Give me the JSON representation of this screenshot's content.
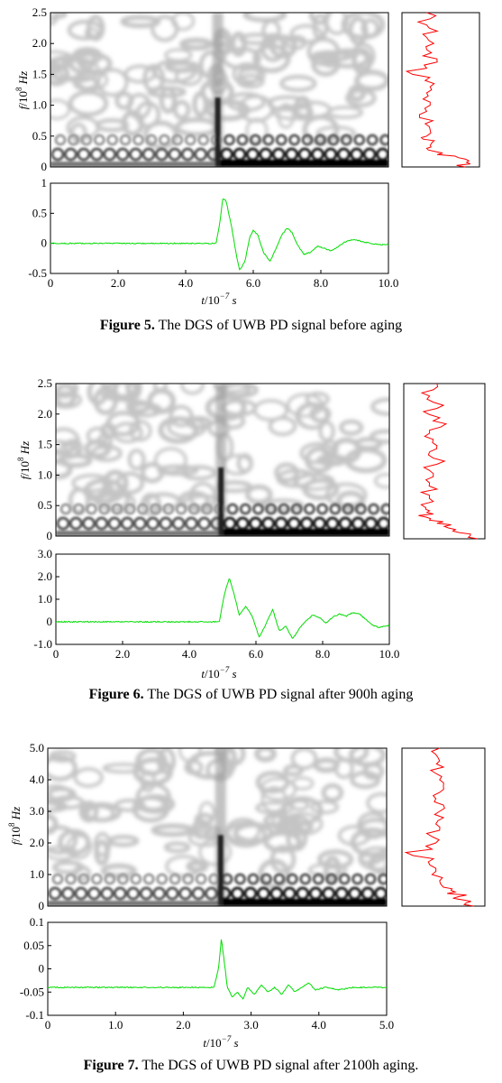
{
  "figures": [
    {
      "caption": {
        "label": "Figure 5.",
        "text": "The DGS of UWB PD signal before aging"
      },
      "chart_data": [
        {
          "type": "heatmap",
          "ylabel_parts": [
            "f",
            "/10",
            "8",
            " Hz"
          ],
          "ylim": [
            0,
            2.5
          ],
          "yticks": [
            "0",
            "0.5",
            "1.0",
            "1.5",
            "2.0",
            "2.5"
          ],
          "xlim": [
            0,
            10
          ],
          "burst_t": 4.95,
          "colormap": [
            "#ffffff",
            "#000000"
          ]
        },
        {
          "type": "line",
          "orientation": "vertical",
          "series_color": "#ff0000",
          "y": [
            0.0,
            0.05,
            0.1,
            0.15,
            0.2,
            0.25,
            0.3,
            0.35,
            0.4,
            0.45,
            0.5,
            0.6,
            0.7,
            0.8,
            0.9,
            1.0,
            1.1,
            1.2,
            1.3,
            1.4,
            1.5,
            1.6,
            1.7,
            1.8,
            1.9,
            2.0,
            2.1,
            2.2,
            2.3,
            2.4,
            2.5
          ],
          "x": [
            0.85,
            0.92,
            0.9,
            0.75,
            0.45,
            0.42,
            0.3,
            0.35,
            0.38,
            0.25,
            0.3,
            0.35,
            0.28,
            0.2,
            0.3,
            0.35,
            0.25,
            0.3,
            0.35,
            0.28,
            0.1,
            0.3,
            0.45,
            0.25,
            0.3,
            0.4,
            0.3,
            0.45,
            0.3,
            0.35,
            0.3
          ]
        },
        {
          "type": "line",
          "series_color": "#00dd00",
          "xlabel_parts": [
            "t",
            "/10",
            "−7",
            " s"
          ],
          "xlim": [
            0,
            10
          ],
          "ylim": [
            -0.5,
            1
          ],
          "xticks": [
            "0",
            "2.0",
            "4.0",
            "6.0",
            "8.0",
            "10.0"
          ],
          "yticks": [
            "-0.5",
            "0",
            "0.5",
            "1"
          ],
          "x": [
            0,
            1,
            2,
            3,
            4,
            4.9,
            5.0,
            5.1,
            5.2,
            5.35,
            5.5,
            5.6,
            5.75,
            5.9,
            6.0,
            6.15,
            6.3,
            6.5,
            6.7,
            6.85,
            7.0,
            7.15,
            7.3,
            7.5,
            7.7,
            7.9,
            8.1,
            8.3,
            8.5,
            8.7,
            8.9,
            9.1,
            9.3,
            9.5,
            9.7,
            10
          ],
          "y": [
            0,
            0,
            0,
            0,
            0,
            0.0,
            0.3,
            0.75,
            0.7,
            0.3,
            -0.2,
            -0.45,
            -0.3,
            0.1,
            0.22,
            0.12,
            -0.15,
            -0.3,
            -0.05,
            0.15,
            0.25,
            0.18,
            -0.02,
            -0.18,
            -0.15,
            -0.05,
            -0.08,
            -0.12,
            -0.06,
            0.02,
            0.06,
            0.05,
            0.02,
            0.0,
            -0.02,
            -0.02
          ]
        }
      ]
    },
    {
      "caption": {
        "label": "Figure 6.",
        "text": "The DGS of UWB PD signal after 900h aging"
      },
      "chart_data": [
        {
          "type": "heatmap",
          "ylabel_parts": [
            "f",
            "/10",
            "8",
            " Hz"
          ],
          "ylim": [
            0,
            2.5
          ],
          "yticks": [
            "0",
            "0.5",
            "1.0",
            "1.5",
            "2.0",
            "2.5"
          ],
          "xlim": [
            0,
            10
          ],
          "burst_t": 4.95,
          "colormap": [
            "#ffffff",
            "#000000"
          ]
        },
        {
          "type": "line",
          "orientation": "vertical",
          "series_color": "#ff0000",
          "y": [
            0.0,
            0.05,
            0.1,
            0.15,
            0.2,
            0.25,
            0.3,
            0.35,
            0.4,
            0.45,
            0.5,
            0.6,
            0.7,
            0.8,
            0.9,
            1.0,
            1.1,
            1.2,
            1.3,
            1.4,
            1.5,
            1.6,
            1.7,
            1.8,
            1.9,
            2.0,
            2.1,
            2.2,
            2.3,
            2.4,
            2.5
          ],
          "x": [
            0.95,
            0.85,
            0.7,
            0.65,
            0.5,
            0.4,
            0.3,
            0.25,
            0.35,
            0.3,
            0.25,
            0.35,
            0.3,
            0.4,
            0.3,
            0.35,
            0.3,
            0.4,
            0.35,
            0.3,
            0.4,
            0.35,
            0.3,
            0.45,
            0.35,
            0.3,
            0.4,
            0.35,
            0.3,
            0.35,
            0.4
          ]
        },
        {
          "type": "line",
          "series_color": "#00dd00",
          "xlabel_parts": [
            "t",
            "/10",
            "−7",
            " s"
          ],
          "xlim": [
            0,
            10
          ],
          "ylim": [
            -1,
            3
          ],
          "xticks": [
            "0",
            "2.0",
            "4.0",
            "6.0",
            "8.0",
            "10.0"
          ],
          "yticks": [
            "-1.0",
            "0",
            "1.0",
            "2.0",
            "3.0"
          ],
          "x": [
            0,
            1,
            2,
            3,
            4,
            4.9,
            5.05,
            5.2,
            5.35,
            5.5,
            5.7,
            5.9,
            6.1,
            6.3,
            6.5,
            6.7,
            6.9,
            7.1,
            7.3,
            7.5,
            7.7,
            7.9,
            8.1,
            8.3,
            8.5,
            8.7,
            8.9,
            9.1,
            9.3,
            9.5,
            9.7,
            10
          ],
          "y": [
            0,
            0,
            0,
            0,
            0,
            0.0,
            1.2,
            1.95,
            1.2,
            0.3,
            0.7,
            0.2,
            -0.7,
            -0.1,
            0.55,
            -0.4,
            -0.2,
            -0.75,
            -0.3,
            0.05,
            0.3,
            0.2,
            -0.05,
            0.2,
            0.35,
            0.25,
            0.4,
            0.35,
            0.1,
            -0.15,
            -0.25,
            -0.15
          ]
        }
      ]
    },
    {
      "caption": {
        "label": "Figure 7.",
        "text": "The DGS of UWB PD signal after 2100h aging."
      },
      "chart_data": [
        {
          "type": "heatmap",
          "ylabel_parts": [
            "f",
            "/10",
            "8",
            " Hz"
          ],
          "ylim": [
            0,
            5
          ],
          "yticks": [
            "0",
            "1.0",
            "2.0",
            "3.0",
            "4.0",
            "5.0"
          ],
          "xlim": [
            0,
            5
          ],
          "burst_t": 2.55,
          "colormap": [
            "#ffffff",
            "#000000"
          ]
        },
        {
          "type": "line",
          "orientation": "vertical",
          "series_color": "#ff0000",
          "y": [
            0.0,
            0.1,
            0.2,
            0.3,
            0.4,
            0.5,
            0.6,
            0.8,
            1.0,
            1.2,
            1.4,
            1.6,
            1.8,
            2.0,
            2.2,
            2.4,
            2.6,
            2.8,
            3.0,
            3.2,
            3.4,
            3.6,
            3.8,
            4.0,
            4.2,
            4.4,
            4.6,
            4.8,
            5.0
          ],
          "x": [
            0.9,
            0.8,
            0.75,
            0.7,
            0.55,
            0.6,
            0.5,
            0.45,
            0.35,
            0.4,
            0.3,
            0.1,
            0.35,
            0.4,
            0.35,
            0.45,
            0.4,
            0.5,
            0.45,
            0.5,
            0.4,
            0.45,
            0.5,
            0.45,
            0.4,
            0.5,
            0.45,
            0.4,
            0.45
          ]
        },
        {
          "type": "line",
          "series_color": "#00dd00",
          "xlabel_parts": [
            "t",
            "/10",
            "−7",
            " s"
          ],
          "xlim": [
            0,
            5
          ],
          "ylim": [
            -0.1,
            0.1
          ],
          "xticks": [
            "0",
            "1.0",
            "2.0",
            "3.0",
            "4.0",
            "5.0"
          ],
          "yticks": [
            "-0.1",
            "-0.05",
            "0",
            "0.05",
            "0.1"
          ],
          "x": [
            0,
            0.5,
            1,
            1.5,
            2,
            2.45,
            2.52,
            2.56,
            2.6,
            2.65,
            2.72,
            2.8,
            2.88,
            2.95,
            3.05,
            3.15,
            3.25,
            3.35,
            3.45,
            3.55,
            3.65,
            3.75,
            3.85,
            3.95,
            4.1,
            4.3,
            4.5,
            4.7,
            5
          ],
          "y": [
            -0.04,
            -0.04,
            -0.04,
            -0.04,
            -0.04,
            -0.04,
            0.0,
            0.065,
            0.02,
            -0.04,
            -0.06,
            -0.05,
            -0.065,
            -0.04,
            -0.055,
            -0.035,
            -0.05,
            -0.04,
            -0.055,
            -0.035,
            -0.05,
            -0.04,
            -0.03,
            -0.045,
            -0.04,
            -0.045,
            -0.04,
            -0.04,
            -0.04
          ]
        }
      ]
    }
  ]
}
